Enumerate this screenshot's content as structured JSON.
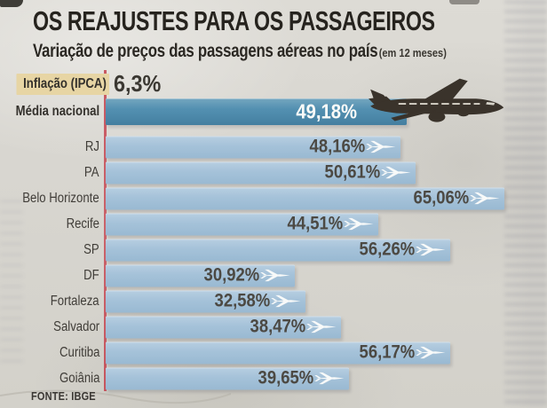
{
  "header": {
    "title": "OS REAJUSTES PARA OS PASSAGEIROS",
    "subtitle": "Variação de preços das passagens aéreas no país",
    "subtitle_note": "(em 12 meses)"
  },
  "chart_data": {
    "type": "bar",
    "orientation": "horizontal",
    "value_unit": "%",
    "title": "OS REAJUSTES PARA OS PASSAGEIROS",
    "subtitle": "Variação de preços das passagens aéreas no país (em 12 meses)",
    "categories": [
      "Inflação (IPCA)",
      "Média nacional",
      "RJ",
      "PA",
      "Belo Horizonte",
      "Recife",
      "SP",
      "DF",
      "Fortaleza",
      "Salvador",
      "Curitiba",
      "Goiânia"
    ],
    "values": [
      6.3,
      49.18,
      48.16,
      50.61,
      65.06,
      44.51,
      56.26,
      30.92,
      32.58,
      38.47,
      56.17,
      39.65
    ],
    "rows": [
      {
        "label": "Inflação (IPCA)",
        "value": 6.3,
        "display": "6,3%",
        "variant": "inflation",
        "bold": true,
        "boxed": true
      },
      {
        "label": "Média nacional",
        "value": 49.18,
        "display": "49,18%",
        "variant": "national",
        "bold": true,
        "boxed": false
      },
      {
        "label": "RJ",
        "value": 48.16,
        "display": "48,16%",
        "variant": "city",
        "bold": false,
        "boxed": false
      },
      {
        "label": "PA",
        "value": 50.61,
        "display": "50,61%",
        "variant": "city",
        "bold": false,
        "boxed": false
      },
      {
        "label": "Belo Horizonte",
        "value": 65.06,
        "display": "65,06%",
        "variant": "city",
        "bold": false,
        "boxed": false
      },
      {
        "label": "Recife",
        "value": 44.51,
        "display": "44,51%",
        "variant": "city",
        "bold": false,
        "boxed": false
      },
      {
        "label": "SP",
        "value": 56.26,
        "display": "56,26%",
        "variant": "city",
        "bold": false,
        "boxed": false
      },
      {
        "label": "DF",
        "value": 30.92,
        "display": "30,92%",
        "variant": "city",
        "bold": false,
        "boxed": false
      },
      {
        "label": "Fortaleza",
        "value": 32.58,
        "display": "32,58%",
        "variant": "city",
        "bold": false,
        "boxed": false
      },
      {
        "label": "Salvador",
        "value": 38.47,
        "display": "38,47%",
        "variant": "city",
        "bold": false,
        "boxed": false
      },
      {
        "label": "Curitiba",
        "value": 56.17,
        "display": "56,17%",
        "variant": "city",
        "bold": false,
        "boxed": false
      },
      {
        "label": "Goiânia",
        "value": 39.65,
        "display": "39,65%",
        "variant": "city",
        "bold": false,
        "boxed": false
      }
    ],
    "xlim": [
      0,
      70
    ],
    "grid": false,
    "legend": null,
    "source": "FONTE: IBGE",
    "colors": {
      "bar": "#a5c2d9",
      "bar_national": "#4d89ac",
      "axis_line": "#c4414d",
      "value_text": "#4c4943",
      "value_text_national": "#ffffff",
      "label_highlight_bg": "#e7d5a4",
      "paper": "#d8d6d0"
    },
    "icons": {
      "city_marker": "airplane-icon",
      "national_marker": "jet-silhouette-icon"
    }
  }
}
